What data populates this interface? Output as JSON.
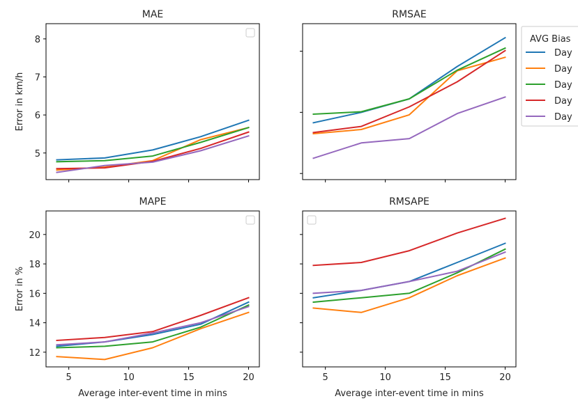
{
  "chart_data": [
    {
      "type": "line",
      "title": "MAE",
      "ylabel": "Error in km/h",
      "xlabel": "",
      "x": [
        4,
        8,
        12,
        16,
        20
      ],
      "xlim": [
        3.1,
        20.9
      ],
      "xticks": [
        5,
        10,
        15,
        20
      ],
      "ylim": [
        4.3,
        8.4
      ],
      "yticks": [
        5,
        6,
        7,
        8
      ],
      "show_xticklabels": false,
      "show_yticklabels": true,
      "legend": "empty-top-right",
      "series": [
        {
          "color": "#1f77b4",
          "values": [
            4.82,
            4.87,
            5.08,
            5.43,
            5.86
          ]
        },
        {
          "color": "#ff7f0e",
          "values": [
            4.55,
            4.63,
            4.8,
            5.35,
            5.67
          ]
        },
        {
          "color": "#2ca02c",
          "values": [
            4.77,
            4.8,
            4.92,
            5.28,
            5.67
          ]
        },
        {
          "color": "#d62728",
          "values": [
            4.59,
            4.61,
            4.78,
            5.12,
            5.55
          ]
        },
        {
          "color": "#9467bd",
          "values": [
            4.49,
            4.67,
            4.76,
            5.06,
            5.45
          ]
        }
      ]
    },
    {
      "type": "line",
      "title": "RMSAE",
      "ylabel": "",
      "xlabel": "",
      "x": [
        4,
        8,
        12,
        16,
        20
      ],
      "xlim": [
        3.1,
        20.9
      ],
      "xticks": [
        5,
        10,
        15,
        20
      ],
      "ylim": [
        5.9,
        8.45
      ],
      "yticks": [
        6,
        7,
        8
      ],
      "show_xticklabels": false,
      "show_yticklabels": false,
      "legend": "outside-right",
      "series": [
        {
          "color": "#1f77b4",
          "values": [
            6.83,
            7.0,
            7.22,
            7.75,
            8.22
          ]
        },
        {
          "color": "#ff7f0e",
          "values": [
            6.65,
            6.72,
            6.96,
            7.68,
            7.9
          ]
        },
        {
          "color": "#2ca02c",
          "values": [
            6.97,
            7.01,
            7.22,
            7.69,
            8.05
          ]
        },
        {
          "color": "#d62728",
          "values": [
            6.67,
            6.77,
            7.09,
            7.5,
            8.01
          ]
        },
        {
          "color": "#9467bd",
          "values": [
            6.25,
            6.5,
            6.57,
            6.98,
            7.25
          ]
        }
      ]
    },
    {
      "type": "line",
      "title": "MAPE",
      "ylabel": "Error in %",
      "xlabel": "Average inter-event time in mins",
      "x": [
        4,
        8,
        12,
        16,
        20
      ],
      "xlim": [
        3.1,
        20.9
      ],
      "xticks": [
        5,
        10,
        15,
        20
      ],
      "ylim": [
        11.0,
        21.6
      ],
      "yticks": [
        12,
        14,
        16,
        18,
        20
      ],
      "show_xticklabels": true,
      "show_yticklabels": true,
      "legend": "empty-top-right",
      "series": [
        {
          "color": "#1f77b4",
          "values": [
            12.4,
            12.7,
            13.2,
            13.9,
            15.4
          ]
        },
        {
          "color": "#ff7f0e",
          "values": [
            11.7,
            11.5,
            12.3,
            13.6,
            14.7
          ]
        },
        {
          "color": "#2ca02c",
          "values": [
            12.3,
            12.4,
            12.7,
            13.7,
            15.2
          ]
        },
        {
          "color": "#d62728",
          "values": [
            12.8,
            13.0,
            13.4,
            14.5,
            15.7
          ]
        },
        {
          "color": "#9467bd",
          "values": [
            12.5,
            12.7,
            13.3,
            14.0,
            15.1
          ]
        }
      ]
    },
    {
      "type": "line",
      "title": "RMSAPE",
      "ylabel": "",
      "xlabel": "Average inter-event time in mins",
      "x": [
        4,
        8,
        12,
        16,
        20
      ],
      "xlim": [
        3.1,
        20.9
      ],
      "xticks": [
        5,
        10,
        15,
        20
      ],
      "ylim": [
        11.0,
        21.6
      ],
      "yticks": [
        12,
        14,
        16,
        18,
        20
      ],
      "show_xticklabels": true,
      "show_yticklabels": false,
      "legend": "empty-top-left",
      "series": [
        {
          "color": "#1f77b4",
          "values": [
            15.7,
            16.2,
            16.8,
            18.1,
            19.4
          ]
        },
        {
          "color": "#ff7f0e",
          "values": [
            15.0,
            14.7,
            15.7,
            17.2,
            18.4
          ]
        },
        {
          "color": "#2ca02c",
          "values": [
            15.4,
            15.7,
            16.0,
            17.4,
            19.0
          ]
        },
        {
          "color": "#d62728",
          "values": [
            17.9,
            18.1,
            18.9,
            20.1,
            21.1
          ]
        },
        {
          "color": "#9467bd",
          "values": [
            16.0,
            16.2,
            16.8,
            17.5,
            18.8
          ]
        }
      ]
    }
  ],
  "legend": {
    "title": "AVG Bias",
    "entries": [
      {
        "label": "Day",
        "color": "#1f77b4"
      },
      {
        "label": "Day",
        "color": "#ff7f0e"
      },
      {
        "label": "Day",
        "color": "#2ca02c"
      },
      {
        "label": "Day",
        "color": "#d62728"
      },
      {
        "label": "Day",
        "color": "#9467bd"
      }
    ]
  }
}
